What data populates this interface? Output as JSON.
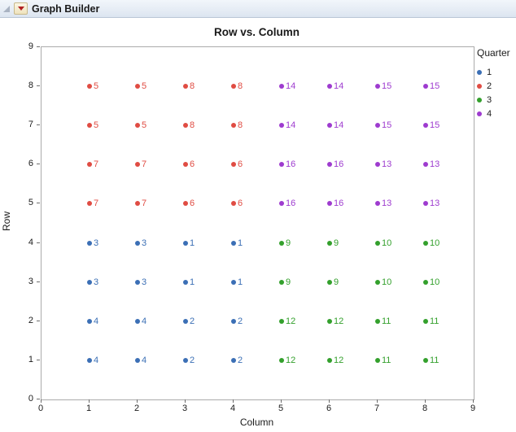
{
  "window": {
    "title": "Graph Builder"
  },
  "chart_data": {
    "type": "scatter",
    "title": "Row vs. Column",
    "xlabel": "Column",
    "ylabel": "Row",
    "xlim": [
      0,
      9
    ],
    "ylim": [
      0,
      9
    ],
    "xticks": [
      0,
      1,
      2,
      3,
      4,
      5,
      6,
      7,
      8,
      9
    ],
    "yticks": [
      0,
      1,
      2,
      3,
      4,
      5,
      6,
      7,
      8,
      9
    ],
    "grid": false,
    "legend": {
      "title": "Quarter",
      "position": "right",
      "items": [
        {
          "label": "1",
          "color": "#3B6FB5"
        },
        {
          "label": "2",
          "color": "#E04C43"
        },
        {
          "label": "3",
          "color": "#33A02C"
        },
        {
          "label": "4",
          "color": "#9E3BCF"
        }
      ]
    },
    "colors": {
      "1": "#3B6FB5",
      "2": "#E04C43",
      "3": "#33A02C",
      "4": "#9E3BCF"
    },
    "points": [
      {
        "x": 1,
        "y": 8,
        "quarter": "2",
        "label": "5"
      },
      {
        "x": 2,
        "y": 8,
        "quarter": "2",
        "label": "5"
      },
      {
        "x": 3,
        "y": 8,
        "quarter": "2",
        "label": "8"
      },
      {
        "x": 4,
        "y": 8,
        "quarter": "2",
        "label": "8"
      },
      {
        "x": 5,
        "y": 8,
        "quarter": "4",
        "label": "14"
      },
      {
        "x": 6,
        "y": 8,
        "quarter": "4",
        "label": "14"
      },
      {
        "x": 7,
        "y": 8,
        "quarter": "4",
        "label": "15"
      },
      {
        "x": 8,
        "y": 8,
        "quarter": "4",
        "label": "15"
      },
      {
        "x": 1,
        "y": 7,
        "quarter": "2",
        "label": "5"
      },
      {
        "x": 2,
        "y": 7,
        "quarter": "2",
        "label": "5"
      },
      {
        "x": 3,
        "y": 7,
        "quarter": "2",
        "label": "8"
      },
      {
        "x": 4,
        "y": 7,
        "quarter": "2",
        "label": "8"
      },
      {
        "x": 5,
        "y": 7,
        "quarter": "4",
        "label": "14"
      },
      {
        "x": 6,
        "y": 7,
        "quarter": "4",
        "label": "14"
      },
      {
        "x": 7,
        "y": 7,
        "quarter": "4",
        "label": "15"
      },
      {
        "x": 8,
        "y": 7,
        "quarter": "4",
        "label": "15"
      },
      {
        "x": 1,
        "y": 6,
        "quarter": "2",
        "label": "7"
      },
      {
        "x": 2,
        "y": 6,
        "quarter": "2",
        "label": "7"
      },
      {
        "x": 3,
        "y": 6,
        "quarter": "2",
        "label": "6"
      },
      {
        "x": 4,
        "y": 6,
        "quarter": "2",
        "label": "6"
      },
      {
        "x": 5,
        "y": 6,
        "quarter": "4",
        "label": "16"
      },
      {
        "x": 6,
        "y": 6,
        "quarter": "4",
        "label": "16"
      },
      {
        "x": 7,
        "y": 6,
        "quarter": "4",
        "label": "13"
      },
      {
        "x": 8,
        "y": 6,
        "quarter": "4",
        "label": "13"
      },
      {
        "x": 1,
        "y": 5,
        "quarter": "2",
        "label": "7"
      },
      {
        "x": 2,
        "y": 5,
        "quarter": "2",
        "label": "7"
      },
      {
        "x": 3,
        "y": 5,
        "quarter": "2",
        "label": "6"
      },
      {
        "x": 4,
        "y": 5,
        "quarter": "2",
        "label": "6"
      },
      {
        "x": 5,
        "y": 5,
        "quarter": "4",
        "label": "16"
      },
      {
        "x": 6,
        "y": 5,
        "quarter": "4",
        "label": "16"
      },
      {
        "x": 7,
        "y": 5,
        "quarter": "4",
        "label": "13"
      },
      {
        "x": 8,
        "y": 5,
        "quarter": "4",
        "label": "13"
      },
      {
        "x": 1,
        "y": 4,
        "quarter": "1",
        "label": "3"
      },
      {
        "x": 2,
        "y": 4,
        "quarter": "1",
        "label": "3"
      },
      {
        "x": 3,
        "y": 4,
        "quarter": "1",
        "label": "1"
      },
      {
        "x": 4,
        "y": 4,
        "quarter": "1",
        "label": "1"
      },
      {
        "x": 5,
        "y": 4,
        "quarter": "3",
        "label": "9"
      },
      {
        "x": 6,
        "y": 4,
        "quarter": "3",
        "label": "9"
      },
      {
        "x": 7,
        "y": 4,
        "quarter": "3",
        "label": "10"
      },
      {
        "x": 8,
        "y": 4,
        "quarter": "3",
        "label": "10"
      },
      {
        "x": 1,
        "y": 3,
        "quarter": "1",
        "label": "3"
      },
      {
        "x": 2,
        "y": 3,
        "quarter": "1",
        "label": "3"
      },
      {
        "x": 3,
        "y": 3,
        "quarter": "1",
        "label": "1"
      },
      {
        "x": 4,
        "y": 3,
        "quarter": "1",
        "label": "1"
      },
      {
        "x": 5,
        "y": 3,
        "quarter": "3",
        "label": "9"
      },
      {
        "x": 6,
        "y": 3,
        "quarter": "3",
        "label": "9"
      },
      {
        "x": 7,
        "y": 3,
        "quarter": "3",
        "label": "10"
      },
      {
        "x": 8,
        "y": 3,
        "quarter": "3",
        "label": "10"
      },
      {
        "x": 1,
        "y": 2,
        "quarter": "1",
        "label": "4"
      },
      {
        "x": 2,
        "y": 2,
        "quarter": "1",
        "label": "4"
      },
      {
        "x": 3,
        "y": 2,
        "quarter": "1",
        "label": "2"
      },
      {
        "x": 4,
        "y": 2,
        "quarter": "1",
        "label": "2"
      },
      {
        "x": 5,
        "y": 2,
        "quarter": "3",
        "label": "12"
      },
      {
        "x": 6,
        "y": 2,
        "quarter": "3",
        "label": "12"
      },
      {
        "x": 7,
        "y": 2,
        "quarter": "3",
        "label": "11"
      },
      {
        "x": 8,
        "y": 2,
        "quarter": "3",
        "label": "11"
      },
      {
        "x": 1,
        "y": 1,
        "quarter": "1",
        "label": "4"
      },
      {
        "x": 2,
        "y": 1,
        "quarter": "1",
        "label": "4"
      },
      {
        "x": 3,
        "y": 1,
        "quarter": "1",
        "label": "2"
      },
      {
        "x": 4,
        "y": 1,
        "quarter": "1",
        "label": "2"
      },
      {
        "x": 5,
        "y": 1,
        "quarter": "3",
        "label": "12"
      },
      {
        "x": 6,
        "y": 1,
        "quarter": "3",
        "label": "12"
      },
      {
        "x": 7,
        "y": 1,
        "quarter": "3",
        "label": "11"
      },
      {
        "x": 8,
        "y": 1,
        "quarter": "3",
        "label": "11"
      }
    ]
  }
}
